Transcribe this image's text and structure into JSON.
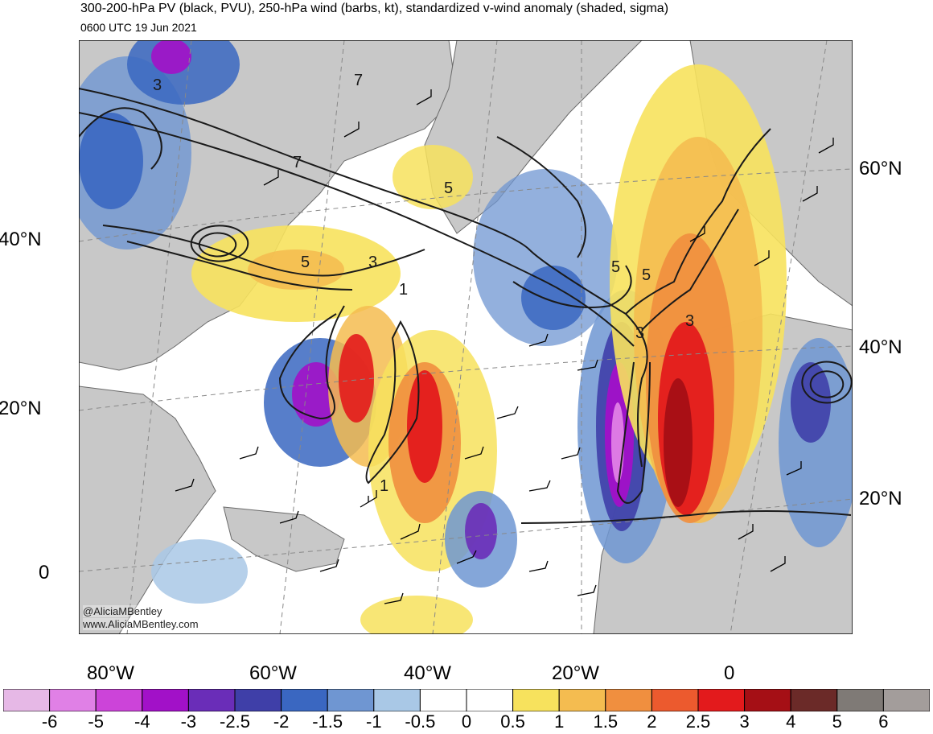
{
  "header": {
    "title": "300-200-hPa PV (black, PVU), 250-hPa wind (barbs, kt), standardized v-wind anomaly (shaded, sigma)",
    "valid_time": "0600 UTC 19 Jun 2021"
  },
  "map": {
    "left_lat_labels": [
      "40°N",
      "20°N",
      "0"
    ],
    "right_lat_labels": [
      "60°N",
      "40°N",
      "20°N"
    ],
    "lon_labels": [
      "80°W",
      "60°W",
      "40°W",
      "20°W",
      "0"
    ],
    "pv_contour_labels": [
      "3",
      "7",
      "7",
      "5",
      "5",
      "3",
      "1",
      "5",
      "3",
      "3",
      "5",
      "1"
    ],
    "credit": [
      "@AliciaMBentley",
      "www.AliciaMBentley.com"
    ]
  },
  "colorbar": {
    "labels": [
      "-6",
      "-5",
      "-4",
      "-3",
      "-2.5",
      "-2",
      "-1.5",
      "-1",
      "-0.5",
      "0",
      "0.5",
      "1",
      "1.5",
      "2",
      "2.5",
      "3",
      "4",
      "5",
      "6"
    ],
    "colors": [
      "#e6b8e6",
      "#e080e6",
      "#cc44d9",
      "#a211c8",
      "#6a2db8",
      "#3f3fa8",
      "#3a67c1",
      "#6f96d2",
      "#a9c8e6",
      "#ffffff",
      "#ffffff",
      "#f7e25d",
      "#f4bc50",
      "#f08f3f",
      "#ec5a2e",
      "#e31a1c",
      "#a50f15",
      "#6b2a28",
      "#7f7a76",
      "#a39d9b"
    ]
  },
  "colors": {
    "land": "#c8c8c8",
    "background": "#ffffff"
  }
}
